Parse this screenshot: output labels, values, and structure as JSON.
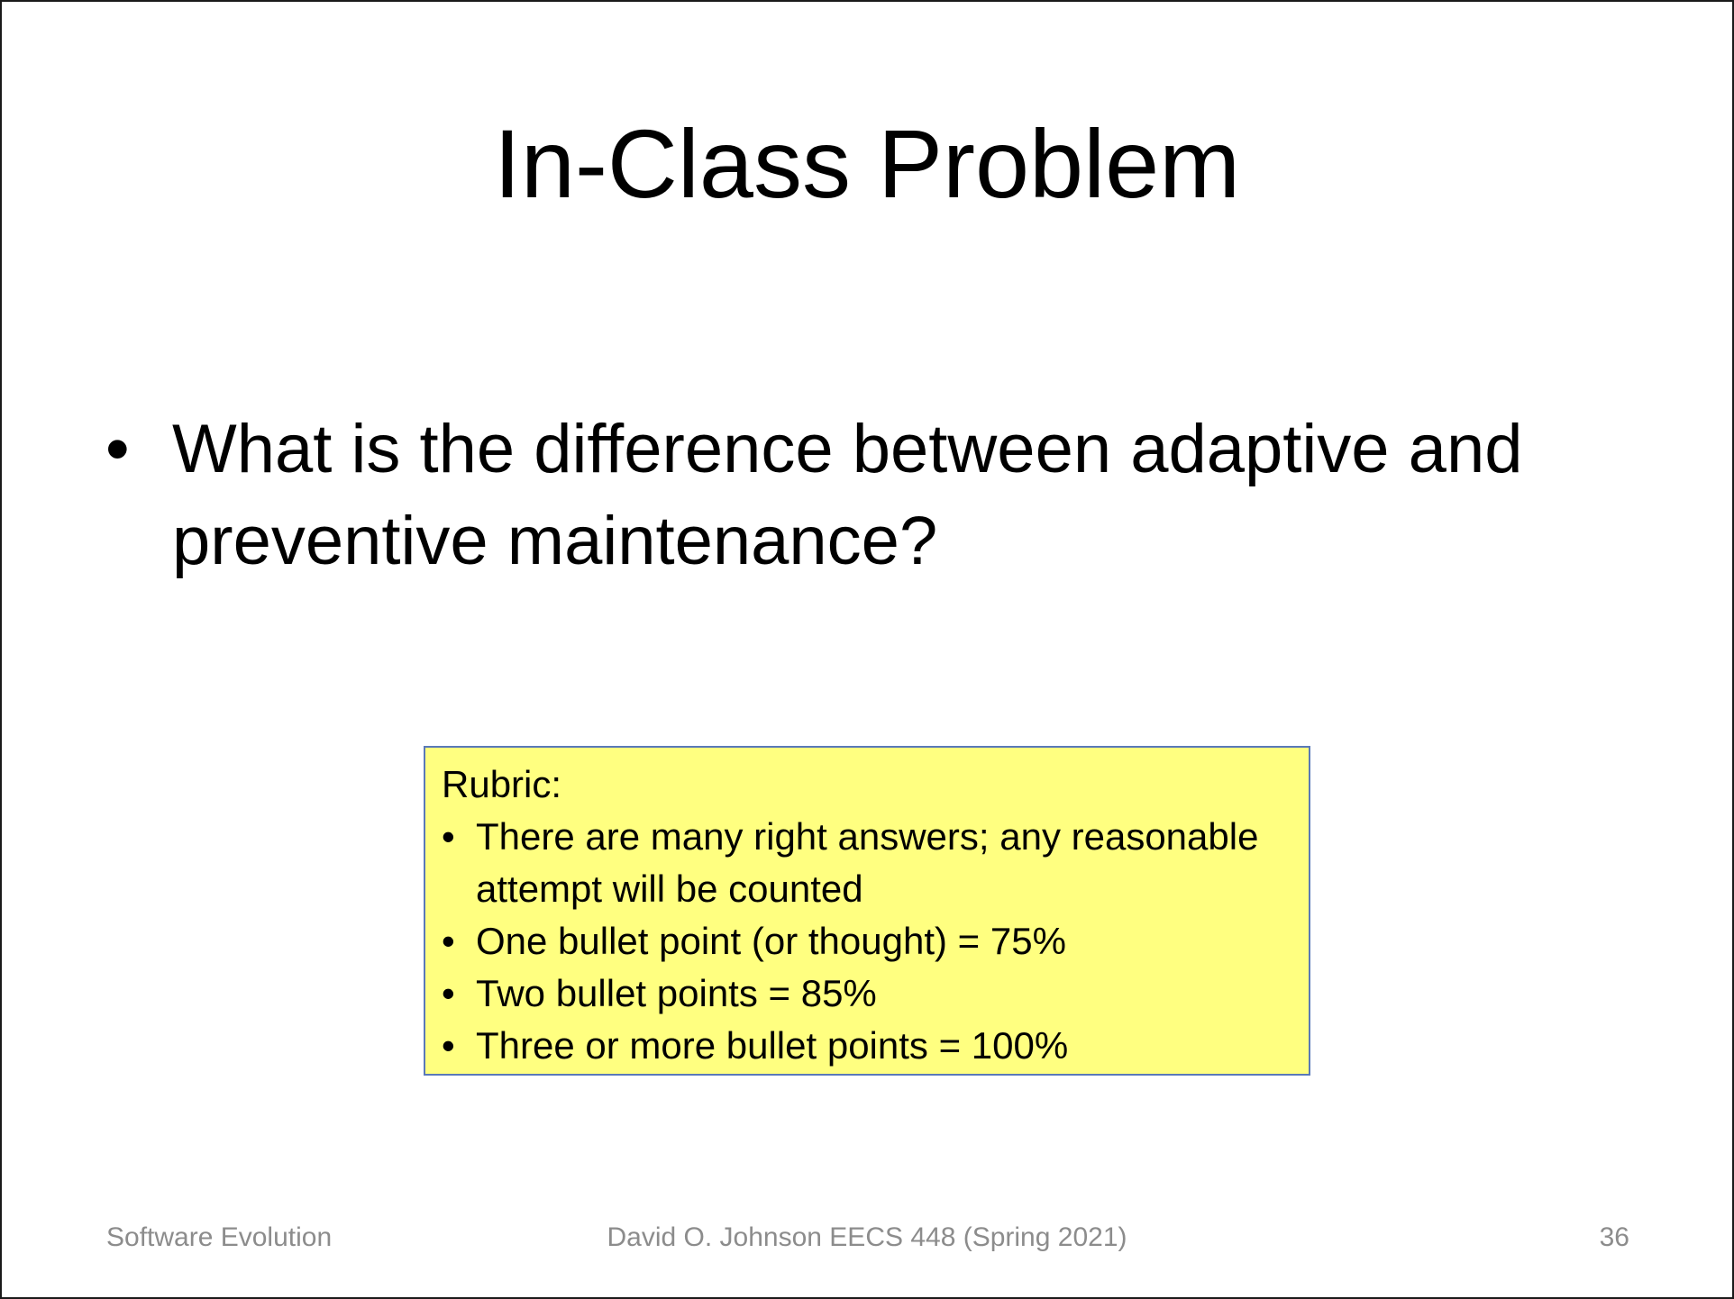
{
  "slide": {
    "title": "In-Class Problem",
    "bullet_symbol": "•",
    "main_points": [
      "What is the difference between adaptive and preventive maintenance?"
    ],
    "rubric": {
      "heading": "Rubric:",
      "items": [
        "There are many right answers; any reasonable attempt will be counted",
        "One bullet point (or thought) = 75%",
        "Two bullet points = 85%",
        "Three or more bullet points = 100%"
      ],
      "background_color": "#ffff80",
      "border_color": "#5a79b8"
    },
    "footer": {
      "left": "Software Evolution",
      "center": "David O. Johnson EECS 448 (Spring 2021)",
      "page_number": "36"
    }
  }
}
